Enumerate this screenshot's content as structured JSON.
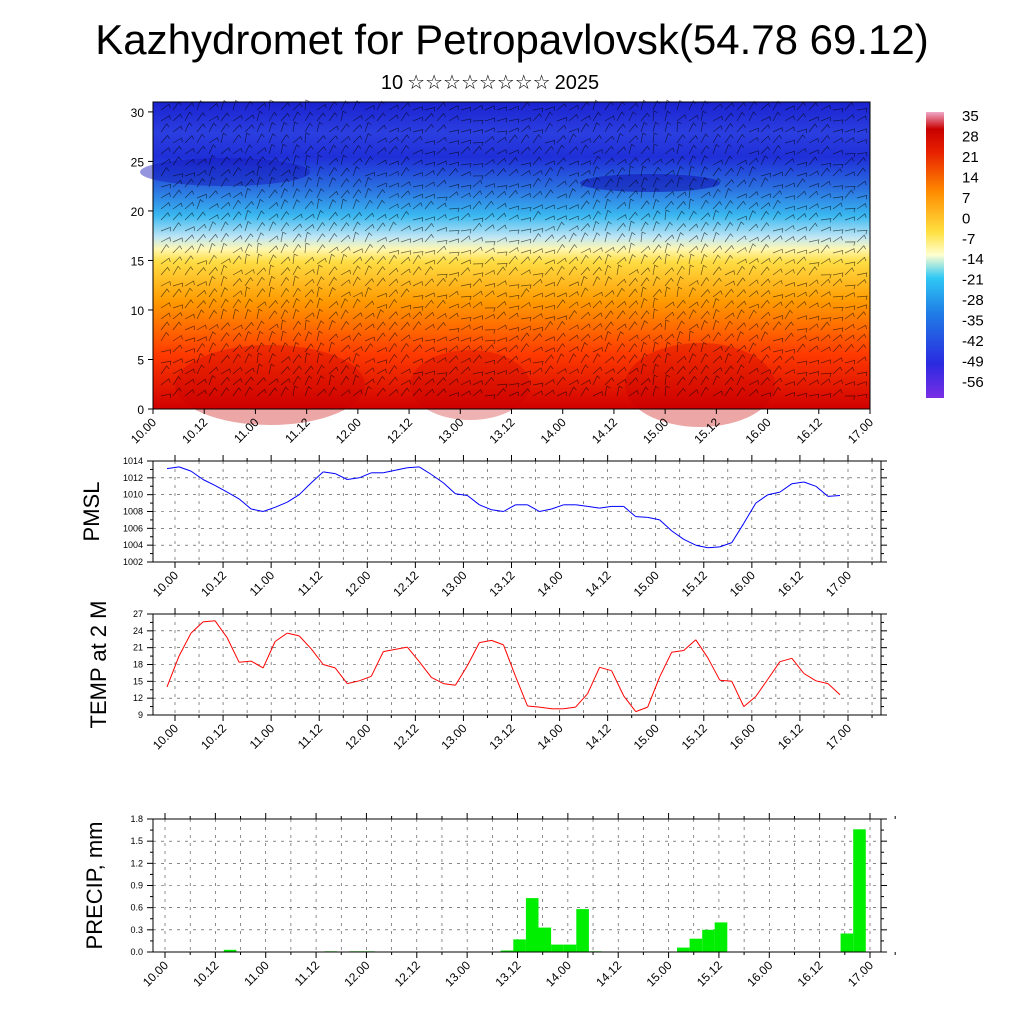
{
  "header": {
    "title": "Kazhydromet for Petropavlovsk(54.78 69.12)",
    "subtitle_day": "10",
    "subtitle_month_glyphs": "☆☆☆☆☆☆☆☆",
    "subtitle_year": "2025"
  },
  "colors": {
    "pmsl_line": "#0000ff",
    "temp_line": "#ff0000",
    "precip_bar": "#00ee00",
    "cross_section_gradient": [
      "#e8d8ff",
      "#d80000",
      "#ff8800",
      "#ffee55",
      "#ffffcc",
      "#44ccff",
      "#2a5bd7",
      "#1a20d8",
      "#7a2ee6"
    ]
  },
  "chart_data": [
    {
      "id": "cross-section",
      "type": "heatmap",
      "title": "",
      "xlabel": "",
      "ylabel": "",
      "x_ticks": [
        "10.00",
        "10.12",
        "11.00",
        "11.12",
        "12.00",
        "12.12",
        "13.00",
        "13.12",
        "14.00",
        "14.12",
        "15.00",
        "15.12",
        "16.00",
        "16.12",
        "17.00"
      ],
      "y_ticks": [
        "0",
        "5",
        "10",
        "15",
        "20",
        "25",
        "30"
      ],
      "ylim": [
        0,
        31
      ],
      "overlay": "wind barbs",
      "colorbar": {
        "labels": [
          "35",
          "28",
          "21",
          "14",
          "7",
          "0",
          "-7",
          "-14",
          "-21",
          "-28",
          "-35",
          "-42",
          "-49",
          "-56"
        ]
      }
    },
    {
      "id": "pmsl",
      "type": "line",
      "ylabel": "PMSL",
      "ylim": [
        1002,
        1014
      ],
      "y_ticks": [
        "1002",
        "1004",
        "1006",
        "1008",
        "1010",
        "1012",
        "1014"
      ],
      "x_ticks": [
        "10.00",
        "10.12",
        "11.00",
        "11.12",
        "12.00",
        "12.12",
        "13.00",
        "13.12",
        "14.00",
        "14.12",
        "15.00",
        "15.12",
        "16.00",
        "16.12",
        "17.00"
      ],
      "grid": true,
      "x_start_tick_index": -0.167,
      "x_step_ticks": 0.25,
      "values": [
        1013.1,
        1013.3,
        1012.8,
        1011.8,
        1011.1,
        1010.3,
        1009.5,
        1008.3,
        1008.0,
        1008.5,
        1009.1,
        1010.0,
        1011.4,
        1012.7,
        1012.5,
        1011.8,
        1012.0,
        1012.6,
        1012.6,
        1012.9,
        1013.2,
        1013.3,
        1012.4,
        1011.4,
        1010.1,
        1009.9,
        1008.8,
        1008.2,
        1008.0,
        1008.8,
        1008.8,
        1008.0,
        1008.3,
        1008.8,
        1008.8,
        1008.6,
        1008.4,
        1008.6,
        1008.6,
        1007.4,
        1007.3,
        1007.0,
        1005.7,
        1004.7,
        1004.0,
        1003.7,
        1003.8,
        1004.3,
        1006.6,
        1009.0,
        1010.0,
        1010.3,
        1011.3,
        1011.5,
        1011.0,
        1009.8,
        1009.9
      ]
    },
    {
      "id": "temp",
      "type": "line",
      "ylabel": "TEMP at 2 M",
      "ylim": [
        9,
        27
      ],
      "y_ticks": [
        "9",
        "12",
        "15",
        "18",
        "21",
        "24",
        "27"
      ],
      "x_ticks": [
        "10.00",
        "10.12",
        "11.00",
        "11.12",
        "12.00",
        "12.12",
        "13.00",
        "13.12",
        "14.00",
        "14.12",
        "15.00",
        "15.12",
        "16.00",
        "16.12",
        "17.00"
      ],
      "grid": true,
      "x_start_tick_index": -0.167,
      "x_step_ticks": 0.25,
      "values": [
        14.0,
        19.5,
        23.6,
        25.6,
        25.8,
        22.8,
        18.4,
        18.6,
        17.4,
        22.1,
        23.6,
        23.1,
        20.8,
        18.0,
        17.4,
        14.6,
        15.1,
        15.9,
        20.3,
        20.7,
        21.1,
        18.5,
        15.7,
        14.6,
        14.3,
        17.8,
        21.9,
        22.3,
        21.5,
        15.9,
        10.6,
        10.4,
        10.1,
        10.1,
        10.4,
        12.8,
        17.5,
        16.9,
        12.4,
        9.6,
        10.4,
        15.8,
        20.2,
        20.5,
        22.4,
        19.2,
        15.2,
        15.0,
        10.5,
        12.3,
        15.4,
        18.5,
        19.1,
        16.4,
        15.1,
        14.6,
        12.6
      ]
    },
    {
      "id": "precip",
      "type": "bar",
      "ylabel": "PRECIP, mm",
      "ylim": [
        0,
        1.8
      ],
      "y_ticks": [
        "0.0",
        "0.3",
        "0.6",
        "0.9",
        "1.2",
        "1.5",
        "1.8"
      ],
      "x_ticks": [
        "10.00",
        "10.12",
        "11.00",
        "11.12",
        "12.00",
        "12.12",
        "13.00",
        "13.12",
        "14.00",
        "14.12",
        "15.00",
        "15.12",
        "16.00",
        "16.12",
        "17.00"
      ],
      "grid": true,
      "x_start_tick_index": -0.333,
      "x_step_ticks": 0.25,
      "values": [
        0,
        0,
        0,
        0,
        0,
        0,
        0.03,
        0,
        0,
        0,
        0,
        0,
        0,
        0,
        0.01,
        0,
        0.01,
        0.01,
        0,
        0,
        0,
        0,
        0,
        0,
        0,
        0,
        0,
        0,
        0.02,
        0.17,
        0.73,
        0.33,
        0.1,
        0.1,
        0.58,
        0.01,
        0,
        0,
        0,
        0,
        0,
        0,
        0.06,
        0.18,
        0.3,
        0.4,
        0,
        0,
        0,
        0,
        0,
        0,
        0,
        0,
        0,
        0.25,
        1.66
      ]
    }
  ]
}
